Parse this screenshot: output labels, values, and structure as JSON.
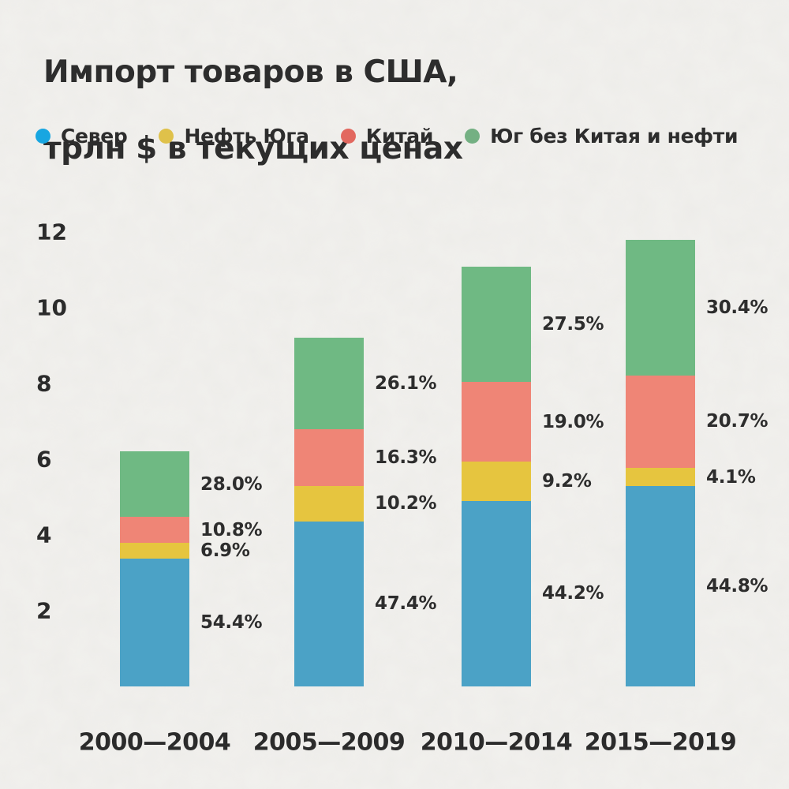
{
  "title": {
    "line1": "Импорт товаров в США,",
    "line2": "трлн $ в текущих ценах"
  },
  "legend": [
    {
      "label": "Север",
      "dot_color": "#18a6e1"
    },
    {
      "label": "Нефть Юга",
      "dot_color": "#dfc14a"
    },
    {
      "label": "Китай",
      "dot_color": "#e2685f"
    },
    {
      "label": "Юг без Китая и нефти",
      "dot_color": "#74b083"
    }
  ],
  "chart_data": {
    "type": "bar",
    "stacked": true,
    "title": "Импорт товаров в США, трлн $ в текущих ценах",
    "unit": "трлн $",
    "categories": [
      "2000—2004",
      "2005—2009",
      "2010—2014",
      "2015—2019"
    ],
    "totals": [
      6.2,
      9.2,
      11.1,
      11.8
    ],
    "series": [
      {
        "name": "Север",
        "color": "#4ba2c6",
        "pct": [
          54.4,
          47.4,
          44.2,
          44.8
        ]
      },
      {
        "name": "Нефть Юга",
        "color": "#e6c53f",
        "pct": [
          6.9,
          10.2,
          9.2,
          4.1
        ]
      },
      {
        "name": "Китай",
        "color": "#ef8576",
        "pct": [
          10.8,
          16.3,
          19.0,
          20.7
        ]
      },
      {
        "name": "Юг без Китая и нефти",
        "color": "#6fb983",
        "pct": [
          28.0,
          26.1,
          27.5,
          30.4
        ]
      }
    ],
    "y_ticks": [
      2,
      4,
      6,
      8,
      10,
      12
    ],
    "ylim": [
      0,
      12.5
    ],
    "grid": false,
    "legend_position": "top"
  },
  "colors": {
    "background": "#f2f1ee",
    "text": "#2d2d2d"
  }
}
